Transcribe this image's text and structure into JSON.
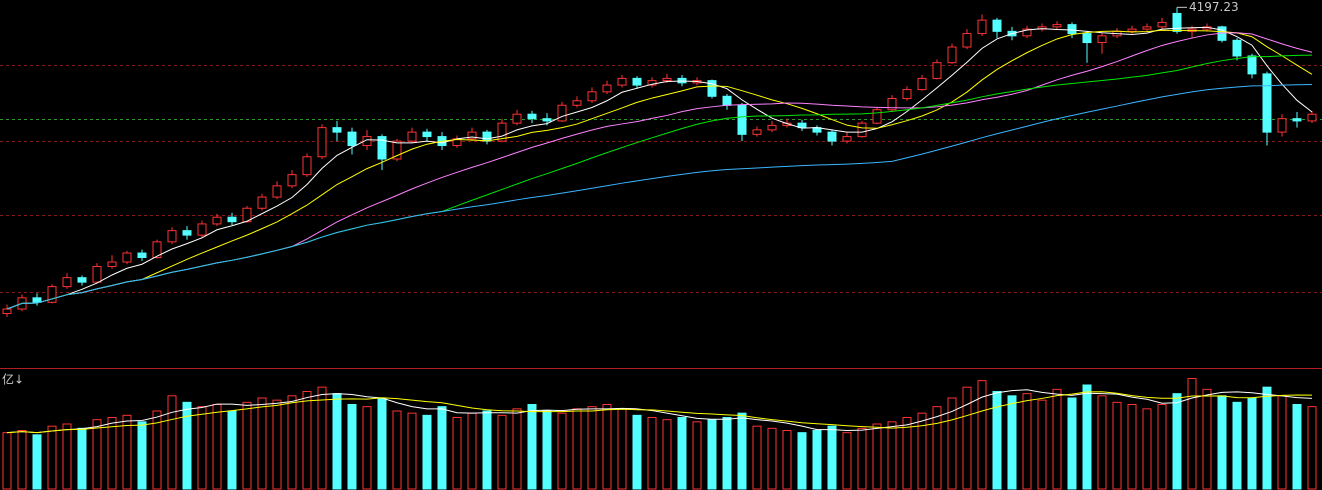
{
  "chart_data": {
    "type": "candlestick",
    "open": [
      2830,
      2850,
      2900,
      2880,
      2950,
      2990,
      2970,
      3040,
      3060,
      3100,
      3080,
      3150,
      3200,
      3180,
      3230,
      3260,
      3240,
      3300,
      3350,
      3400,
      3450,
      3530,
      3660,
      3640,
      3580,
      3620,
      3520,
      3600,
      3640,
      3620,
      3580,
      3610,
      3640,
      3600,
      3680,
      3720,
      3700,
      3690,
      3760,
      3780,
      3820,
      3850,
      3880,
      3850,
      3870,
      3880,
      3860,
      3870,
      3800,
      3760,
      3630,
      3650,
      3670,
      3680,
      3660,
      3640,
      3600,
      3620,
      3680,
      3740,
      3790,
      3830,
      3880,
      3950,
      4020,
      4080,
      4140,
      4090,
      4070,
      4100,
      4110,
      4120,
      4080,
      4040,
      4070,
      4090,
      4100,
      4110,
      4170,
      4090,
      4100,
      4110,
      4050,
      3980,
      3900,
      3640,
      3700,
      3690
    ],
    "high": [
      2870,
      2915,
      2920,
      2960,
      3010,
      3000,
      3055,
      3090,
      3110,
      3115,
      3160,
      3215,
      3220,
      3245,
      3275,
      3280,
      3310,
      3365,
      3420,
      3470,
      3545,
      3675,
      3690,
      3660,
      3650,
      3630,
      3610,
      3660,
      3655,
      3640,
      3625,
      3660,
      3650,
      3700,
      3740,
      3735,
      3725,
      3775,
      3800,
      3840,
      3870,
      3895,
      3890,
      3885,
      3900,
      3895,
      3885,
      3875,
      3810,
      3770,
      3665,
      3690,
      3700,
      3695,
      3670,
      3650,
      3640,
      3690,
      3750,
      3805,
      3845,
      3895,
      3965,
      4035,
      4100,
      4165,
      4150,
      4110,
      4115,
      4125,
      4135,
      4130,
      4090,
      4085,
      4105,
      4115,
      4125,
      4150,
      4197.23,
      4115,
      4125,
      4115,
      4060,
      3990,
      3910,
      3720,
      3730,
      3735
    ],
    "low": [
      2815,
      2840,
      2865,
      2875,
      2940,
      2955,
      2965,
      3030,
      3050,
      3065,
      3075,
      3140,
      3160,
      3170,
      3220,
      3225,
      3235,
      3290,
      3340,
      3390,
      3440,
      3520,
      3600,
      3540,
      3560,
      3470,
      3510,
      3590,
      3600,
      3560,
      3570,
      3600,
      3585,
      3595,
      3670,
      3680,
      3670,
      3685,
      3750,
      3770,
      3810,
      3840,
      3835,
      3840,
      3860,
      3845,
      3850,
      3790,
      3740,
      3600,
      3620,
      3640,
      3660,
      3645,
      3625,
      3580,
      3590,
      3615,
      3675,
      3730,
      3780,
      3825,
      3875,
      3945,
      4010,
      4070,
      4060,
      4050,
      4060,
      4090,
      4100,
      4060,
      3950,
      3990,
      4060,
      4080,
      4090,
      4100,
      4080,
      4060,
      4090,
      4040,
      3960,
      3880,
      3580,
      3620,
      3660,
      3680
    ],
    "close": [
      2850,
      2900,
      2880,
      2950,
      2990,
      2970,
      3040,
      3060,
      3100,
      3080,
      3150,
      3200,
      3180,
      3230,
      3260,
      3240,
      3300,
      3350,
      3400,
      3450,
      3530,
      3660,
      3640,
      3580,
      3620,
      3520,
      3600,
      3640,
      3620,
      3580,
      3610,
      3640,
      3600,
      3680,
      3720,
      3700,
      3690,
      3760,
      3780,
      3820,
      3850,
      3880,
      3850,
      3870,
      3880,
      3860,
      3870,
      3800,
      3760,
      3630,
      3650,
      3670,
      3680,
      3660,
      3640,
      3600,
      3620,
      3680,
      3740,
      3790,
      3830,
      3880,
      3950,
      4020,
      4080,
      4140,
      4090,
      4070,
      4100,
      4110,
      4120,
      4080,
      4040,
      4070,
      4090,
      4100,
      4110,
      4130,
      4090,
      4100,
      4110,
      4050,
      3980,
      3900,
      3640,
      3700,
      3690,
      3720
    ],
    "volume": [
      2600,
      2700,
      2500,
      2900,
      3000,
      2800,
      3200,
      3300,
      3400,
      3100,
      3600,
      4300,
      4000,
      3800,
      3900,
      3600,
      4000,
      4200,
      4100,
      4300,
      4500,
      4700,
      4400,
      3900,
      3800,
      4200,
      3600,
      3500,
      3400,
      3800,
      3300,
      3500,
      3600,
      3400,
      3700,
      3900,
      3600,
      3500,
      3700,
      3800,
      3900,
      3700,
      3400,
      3300,
      3200,
      3300,
      3100,
      3200,
      3300,
      3500,
      2900,
      2800,
      2700,
      2600,
      2700,
      2900,
      2600,
      2800,
      3000,
      3100,
      3300,
      3500,
      3800,
      4200,
      4700,
      5000,
      4500,
      4300,
      4400,
      4100,
      4600,
      4200,
      4800,
      4300,
      4000,
      3900,
      3700,
      3900,
      4400,
      5100,
      4600,
      4300,
      4000,
      4200,
      4700,
      4300,
      3900,
      3800
    ],
    "volume_label": "亿↓",
    "ylim": [
      2600,
      4230
    ],
    "volume_ylim": [
      0,
      5400
    ],
    "up_color": "#ff3232",
    "down_color": "#54ffff",
    "moving_averages": [
      {
        "period": 5,
        "color": "#ffffff"
      },
      {
        "period": 10,
        "color": "#ffff00"
      },
      {
        "period": 20,
        "color": "#ff80ff"
      },
      {
        "period": 30,
        "color": "#00e600"
      },
      {
        "period": 60,
        "color": "#3cb4ff"
      }
    ],
    "volume_moving_averages": [
      {
        "period": 5,
        "color": "#ffffff"
      },
      {
        "period": 10,
        "color": "#ffff00"
      }
    ]
  }
}
